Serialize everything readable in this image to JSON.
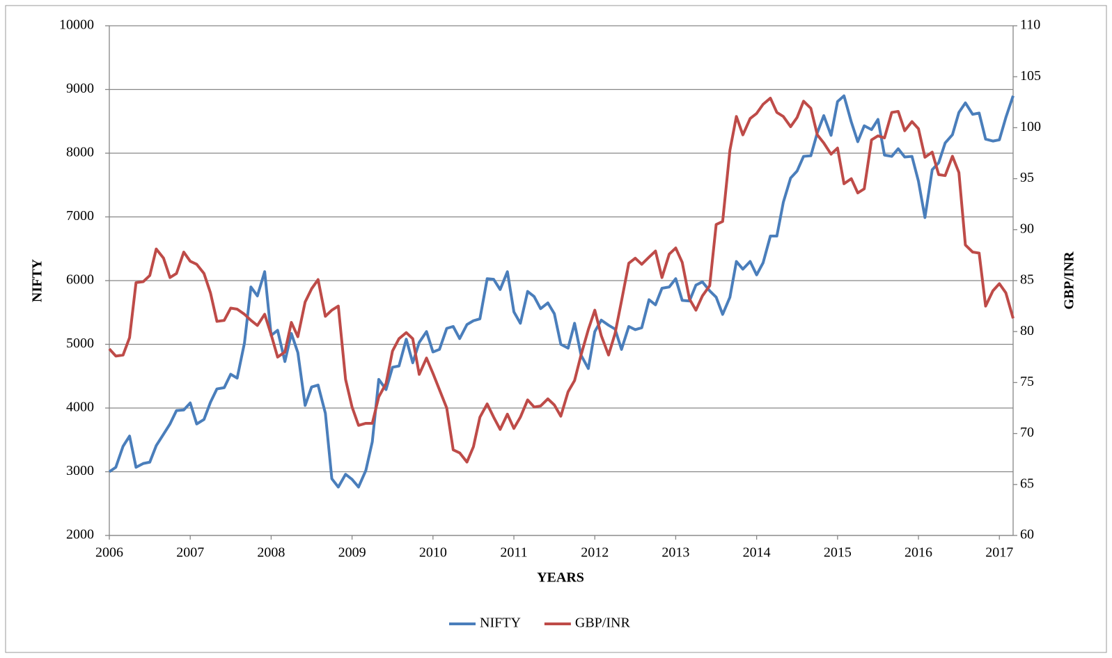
{
  "chart_data": {
    "type": "line",
    "x_label": "YEARS",
    "y_label": "NIFTY",
    "y2_label": "GBP/INR",
    "x": [
      2006.0,
      2006.08,
      2006.17,
      2006.25,
      2006.33,
      2006.42,
      2006.5,
      2006.58,
      2006.67,
      2006.75,
      2006.83,
      2006.92,
      2007.0,
      2007.08,
      2007.17,
      2007.25,
      2007.33,
      2007.42,
      2007.5,
      2007.58,
      2007.67,
      2007.75,
      2007.83,
      2007.92,
      2008.0,
      2008.08,
      2008.17,
      2008.25,
      2008.33,
      2008.42,
      2008.5,
      2008.58,
      2008.67,
      2008.75,
      2008.83,
      2008.92,
      2009.0,
      2009.08,
      2009.17,
      2009.25,
      2009.33,
      2009.42,
      2009.5,
      2009.58,
      2009.67,
      2009.75,
      2009.83,
      2009.92,
      2010.0,
      2010.08,
      2010.17,
      2010.25,
      2010.33,
      2010.42,
      2010.5,
      2010.58,
      2010.67,
      2010.75,
      2010.83,
      2010.92,
      2011.0,
      2011.08,
      2011.17,
      2011.25,
      2011.33,
      2011.42,
      2011.5,
      2011.58,
      2011.67,
      2011.75,
      2011.83,
      2011.92,
      2012.0,
      2012.08,
      2012.17,
      2012.25,
      2012.33,
      2012.42,
      2012.5,
      2012.58,
      2012.67,
      2012.75,
      2012.83,
      2012.92,
      2013.0,
      2013.08,
      2013.17,
      2013.25,
      2013.33,
      2013.42,
      2013.5,
      2013.58,
      2013.67,
      2013.75,
      2013.83,
      2013.92,
      2014.0,
      2014.08,
      2014.17,
      2014.25,
      2014.33,
      2014.42,
      2014.5,
      2014.58,
      2014.67,
      2014.75,
      2014.83,
      2014.92,
      2015.0,
      2015.08,
      2015.17,
      2015.25,
      2015.33,
      2015.42,
      2015.5,
      2015.58,
      2015.67,
      2015.75,
      2015.83,
      2015.92,
      2016.0,
      2016.08,
      2016.17,
      2016.25,
      2016.33,
      2016.42,
      2016.5,
      2016.58,
      2016.67,
      2016.75,
      2016.83,
      2016.92,
      2017.0,
      2017.08,
      2017.17
    ],
    "series": [
      {
        "name": "NIFTY",
        "color": "#4a7ebb",
        "values": [
          3000,
          3070,
          3400,
          3560,
          3070,
          3130,
          3150,
          3410,
          3590,
          3750,
          3960,
          3970,
          4080,
          3750,
          3820,
          4090,
          4300,
          4320,
          4530,
          4470,
          5020,
          5900,
          5760,
          6140,
          5140,
          5220,
          4730,
          5170,
          4870,
          4040,
          4330,
          4360,
          3920,
          2890,
          2760,
          2960,
          2880,
          2760,
          3020,
          3470,
          4450,
          4290,
          4640,
          4660,
          5080,
          4710,
          5030,
          5200,
          4880,
          4920,
          5250,
          5280,
          5090,
          5310,
          5370,
          5400,
          6030,
          6020,
          5860,
          6140,
          5510,
          5330,
          5830,
          5750,
          5560,
          5650,
          5480,
          5000,
          4940,
          5330,
          4830,
          4620,
          5200,
          5380,
          5300,
          5240,
          4920,
          5280,
          5230,
          5260,
          5700,
          5620,
          5880,
          5900,
          6030,
          5690,
          5680,
          5930,
          5980,
          5840,
          5740,
          5470,
          5740,
          6300,
          6180,
          6300,
          6090,
          6280,
          6700,
          6700,
          7230,
          7610,
          7720,
          7950,
          7960,
          8320,
          8590,
          8280,
          8810,
          8900,
          8490,
          8180,
          8430,
          8370,
          8530,
          7970,
          7950,
          8070,
          7940,
          7950,
          7560,
          6990,
          7740,
          7850,
          8160,
          8290,
          8640,
          8790,
          8610,
          8630,
          8220,
          8190,
          8210,
          8560,
          8900
        ]
      },
      {
        "name": "GBP/INR",
        "color": "#be4b48",
        "axis": "y2",
        "values": [
          78.3,
          77.6,
          77.7,
          79.4,
          84.8,
          84.9,
          85.5,
          88.1,
          87.2,
          85.3,
          85.7,
          87.8,
          86.9,
          86.6,
          85.7,
          83.8,
          81.0,
          81.1,
          82.3,
          82.2,
          81.7,
          81.1,
          80.6,
          81.7,
          79.7,
          77.5,
          78.0,
          80.9,
          79.5,
          82.9,
          84.2,
          85.1,
          81.5,
          82.1,
          82.5,
          75.3,
          72.6,
          70.8,
          71.0,
          71.0,
          73.6,
          74.9,
          78.1,
          79.3,
          79.9,
          79.3,
          75.8,
          77.4,
          75.9,
          74.3,
          72.5,
          68.4,
          68.1,
          67.2,
          68.7,
          71.6,
          72.9,
          71.6,
          70.4,
          71.9,
          70.5,
          71.6,
          73.3,
          72.6,
          72.7,
          73.4,
          72.8,
          71.7,
          74.1,
          75.2,
          77.7,
          80.2,
          82.1,
          79.6,
          77.7,
          79.8,
          83.0,
          86.7,
          87.2,
          86.6,
          87.3,
          87.9,
          85.3,
          87.6,
          88.2,
          86.8,
          83.2,
          82.1,
          83.5,
          84.5,
          90.5,
          90.8,
          97.8,
          101.1,
          99.3,
          100.9,
          101.4,
          102.3,
          102.9,
          101.5,
          101.1,
          100.1,
          101.0,
          102.6,
          101.9,
          99.3,
          98.5,
          97.4,
          98.0,
          94.5,
          95.0,
          93.6,
          94.0,
          98.8,
          99.2,
          99.0,
          101.5,
          101.6,
          99.7,
          100.6,
          99.9,
          97.1,
          97.6,
          95.4,
          95.3,
          97.2,
          95.6,
          88.5,
          87.8,
          87.7,
          82.5,
          84.0,
          84.7,
          83.8,
          81.3
        ]
      }
    ],
    "xlim": [
      2006,
      2017.17
    ],
    "xticks": [
      2006,
      2007,
      2008,
      2009,
      2010,
      2011,
      2012,
      2013,
      2014,
      2015,
      2016,
      2017
    ],
    "ylim": [
      2000,
      10000
    ],
    "yticks": [
      2000,
      3000,
      4000,
      5000,
      6000,
      7000,
      8000,
      9000,
      10000
    ],
    "y2lim": [
      60,
      110
    ],
    "y2ticks": [
      60,
      65,
      70,
      75,
      80,
      85,
      90,
      95,
      100,
      105,
      110
    ],
    "grid": true,
    "legend": "bottom"
  }
}
